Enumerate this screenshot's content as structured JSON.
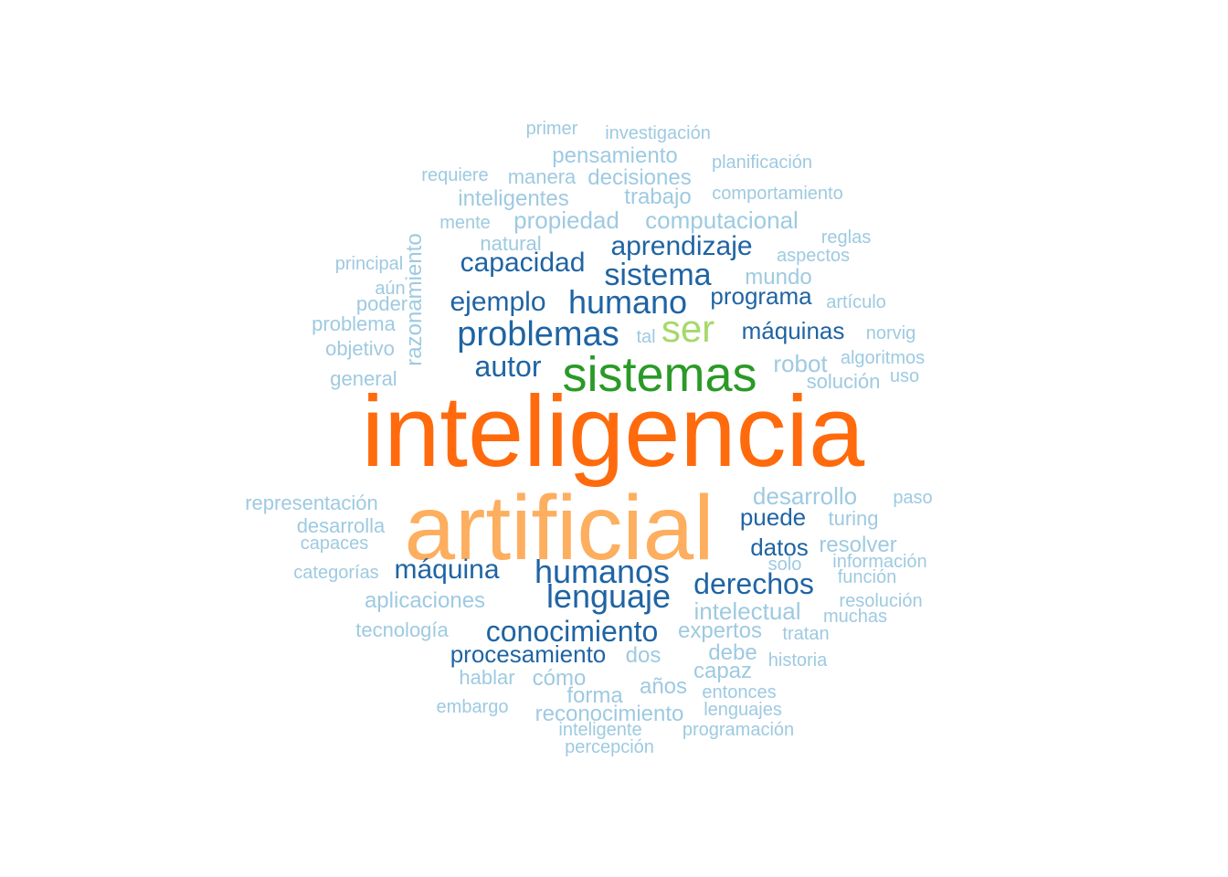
{
  "palette": {
    "light": "#9ECAE1",
    "dark": "#1F64A3",
    "green_dark": "#2A9A27",
    "green_light": "#A6D96A",
    "orange_dark": "#FF6A0D",
    "orange_light": "#FDAE5E"
  },
  "words": [
    {
      "text": "inteligencia",
      "color": "orange_dark"
    },
    {
      "text": "artificial",
      "color": "orange_light"
    },
    {
      "text": "sistemas",
      "color": "green_dark"
    },
    {
      "text": "ser",
      "color": "green_light"
    },
    {
      "text": "humano",
      "color": "dark"
    },
    {
      "text": "problemas",
      "color": "dark"
    },
    {
      "text": "sistema",
      "color": "dark"
    },
    {
      "text": "humanos",
      "color": "dark"
    },
    {
      "text": "lenguaje",
      "color": "dark"
    },
    {
      "text": "conocimiento",
      "color": "dark"
    },
    {
      "text": "derechos",
      "color": "dark"
    },
    {
      "text": "aprendizaje",
      "color": "dark"
    },
    {
      "text": "capacidad",
      "color": "dark"
    },
    {
      "text": "ejemplo",
      "color": "dark"
    },
    {
      "text": "autor",
      "color": "dark"
    },
    {
      "text": "máquina",
      "color": "dark"
    },
    {
      "text": "procesamiento",
      "color": "dark"
    },
    {
      "text": "programa",
      "color": "dark"
    },
    {
      "text": "máquinas",
      "color": "dark"
    },
    {
      "text": "puede",
      "color": "dark"
    },
    {
      "text": "datos",
      "color": "dark"
    },
    {
      "text": "razonamiento",
      "color": "light"
    },
    {
      "text": "computacional",
      "color": "light"
    },
    {
      "text": "propiedad",
      "color": "light"
    },
    {
      "text": "pensamiento",
      "color": "light"
    },
    {
      "text": "decisiones",
      "color": "light"
    },
    {
      "text": "inteligentes",
      "color": "light"
    },
    {
      "text": "trabajo",
      "color": "light"
    },
    {
      "text": "mundo",
      "color": "light"
    },
    {
      "text": "robot",
      "color": "light"
    },
    {
      "text": "desarrollo",
      "color": "light"
    },
    {
      "text": "intelectual",
      "color": "light"
    },
    {
      "text": "aplicaciones",
      "color": "light"
    },
    {
      "text": "expertos",
      "color": "light"
    },
    {
      "text": "reconocimiento",
      "color": "light"
    },
    {
      "text": "cómo",
      "color": "light"
    },
    {
      "text": "forma",
      "color": "light"
    },
    {
      "text": "dos",
      "color": "light"
    },
    {
      "text": "años",
      "color": "light"
    },
    {
      "text": "capaz",
      "color": "light"
    },
    {
      "text": "debe",
      "color": "light"
    },
    {
      "text": "resolver",
      "color": "light"
    },
    {
      "text": "turing",
      "color": "light"
    },
    {
      "text": "objetivo",
      "color": "light"
    },
    {
      "text": "general",
      "color": "light"
    },
    {
      "text": "manera",
      "color": "light"
    },
    {
      "text": "natural",
      "color": "light"
    },
    {
      "text": "tecnología",
      "color": "light"
    },
    {
      "text": "hablar",
      "color": "light"
    },
    {
      "text": "investigación",
      "color": "light"
    },
    {
      "text": "comportamiento",
      "color": "light"
    },
    {
      "text": "planificación",
      "color": "light"
    },
    {
      "text": "requiere",
      "color": "light"
    },
    {
      "text": "primer",
      "color": "light"
    },
    {
      "text": "mente",
      "color": "light"
    },
    {
      "text": "reglas",
      "color": "light"
    },
    {
      "text": "aspectos",
      "color": "light"
    },
    {
      "text": "principal",
      "color": "light"
    },
    {
      "text": "aún",
      "color": "light"
    },
    {
      "text": "poder",
      "color": "light"
    },
    {
      "text": "problema",
      "color": "light"
    },
    {
      "text": "artículo",
      "color": "light"
    },
    {
      "text": "tal",
      "color": "light"
    },
    {
      "text": "norvig",
      "color": "light"
    },
    {
      "text": "algoritmos",
      "color": "light"
    },
    {
      "text": "uso",
      "color": "light"
    },
    {
      "text": "solución",
      "color": "light"
    },
    {
      "text": "representación",
      "color": "light"
    },
    {
      "text": "desarrolla",
      "color": "light"
    },
    {
      "text": "capaces",
      "color": "light"
    },
    {
      "text": "categorías",
      "color": "light"
    },
    {
      "text": "paso",
      "color": "light"
    },
    {
      "text": "información",
      "color": "light"
    },
    {
      "text": "solo",
      "color": "light"
    },
    {
      "text": "función",
      "color": "light"
    },
    {
      "text": "resolución",
      "color": "light"
    },
    {
      "text": "muchas",
      "color": "light"
    },
    {
      "text": "tratan",
      "color": "light"
    },
    {
      "text": "historia",
      "color": "light"
    },
    {
      "text": "entonces",
      "color": "light"
    },
    {
      "text": "lenguajes",
      "color": "light"
    },
    {
      "text": "embargo",
      "color": "light"
    },
    {
      "text": "inteligente",
      "color": "light"
    },
    {
      "text": "programación",
      "color": "light"
    },
    {
      "text": "percepción",
      "color": "light"
    }
  ]
}
